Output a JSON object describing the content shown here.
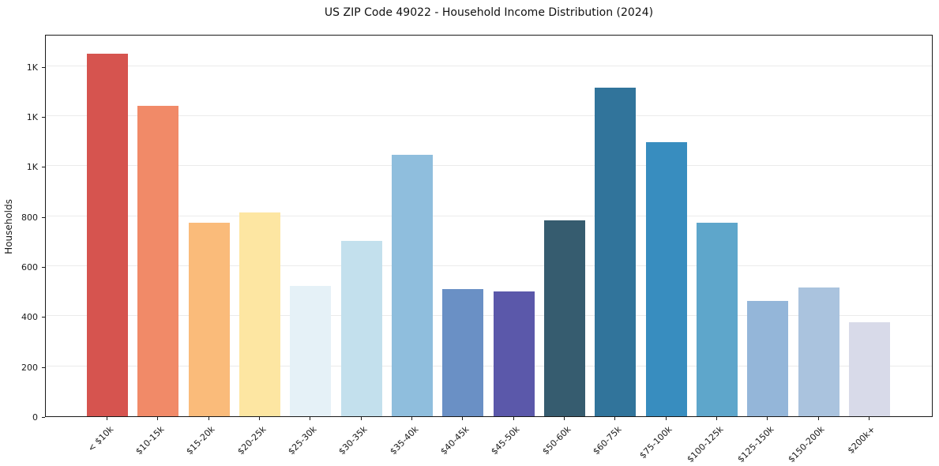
{
  "chart": {
    "title": "US ZIP Code 49022 - Household Income Distribution (2024)",
    "ylabel": "Households"
  },
  "chart_data": {
    "type": "bar",
    "title": "US ZIP Code 49022 - Household Income Distribution (2024)",
    "xlabel": "",
    "ylabel": "Households",
    "categories": [
      "< $10k",
      "$10-15k",
      "$15-20k",
      "$20-25k",
      "$25-30k",
      "$30-35k",
      "$35-40k",
      "$40-45k",
      "$45-50k",
      "$50-60k",
      "$60-75k",
      "$75-100k",
      "$100-125k",
      "$125-150k",
      "$150-200k",
      "$200k+"
    ],
    "values": [
      1450,
      1240,
      775,
      815,
      520,
      700,
      1045,
      510,
      500,
      785,
      1315,
      1095,
      775,
      460,
      515,
      375
    ],
    "bar_colors": [
      "#d6544f",
      "#f18a68",
      "#fabb7a",
      "#fde6a2",
      "#e5f1f7",
      "#c3e0ed",
      "#8fbedd",
      "#6a90c5",
      "#5b58aa",
      "#365c6f",
      "#31749b",
      "#388dbf",
      "#5ea6cb",
      "#94b6d9",
      "#aac3de",
      "#d8dae9"
    ],
    "ylim": [
      0,
      1529
    ],
    "yticks": [
      {
        "value": 0,
        "label": "0"
      },
      {
        "value": 200,
        "label": "200"
      },
      {
        "value": 400,
        "label": "400"
      },
      {
        "value": 600,
        "label": "600"
      },
      {
        "value": 800,
        "label": "800"
      },
      {
        "value": 1000,
        "label": "1K"
      },
      {
        "value": 1200,
        "label": "1K"
      },
      {
        "value": 1400,
        "label": "1K"
      }
    ],
    "grid": true,
    "legend": false,
    "x_tick_rotation_deg": 45
  }
}
